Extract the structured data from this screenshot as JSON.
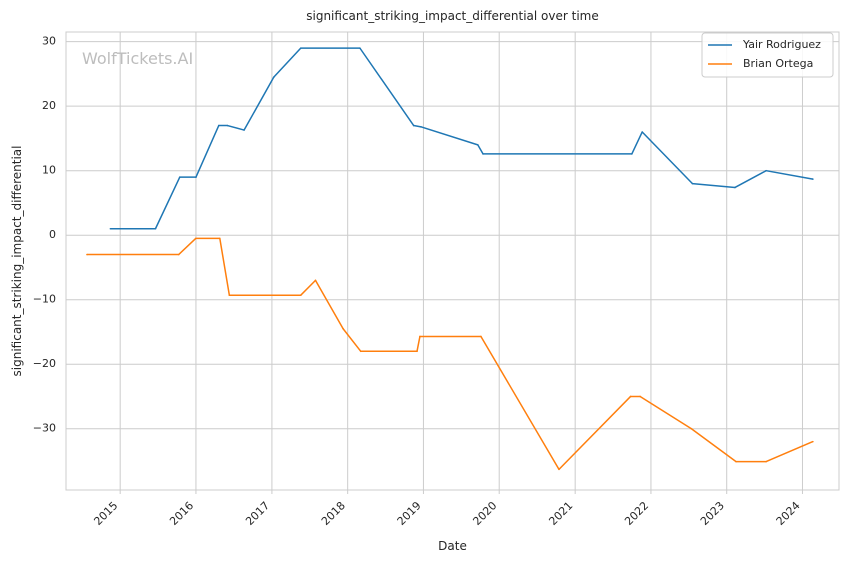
{
  "chart_data": {
    "type": "line",
    "title": "significant_striking_impact_differential over time",
    "xlabel": "Date",
    "ylabel": "significant_striking_impact_differential",
    "watermark": "WolfTickets.AI",
    "xlim": [
      "2014-04-15",
      "2024-06-25"
    ],
    "ylim": [
      -39.5,
      31.5
    ],
    "x_ticks": [
      {
        "date": "2015-01-01",
        "label": "2015"
      },
      {
        "date": "2016-01-01",
        "label": "2016"
      },
      {
        "date": "2017-01-01",
        "label": "2017"
      },
      {
        "date": "2018-01-01",
        "label": "2018"
      },
      {
        "date": "2019-01-01",
        "label": "2019"
      },
      {
        "date": "2020-01-01",
        "label": "2020"
      },
      {
        "date": "2021-01-01",
        "label": "2021"
      },
      {
        "date": "2022-01-01",
        "label": "2022"
      },
      {
        "date": "2023-01-01",
        "label": "2023"
      },
      {
        "date": "2024-01-01",
        "label": "2024"
      }
    ],
    "y_ticks": [
      {
        "value": 30,
        "label": "30"
      },
      {
        "value": 20,
        "label": "20"
      },
      {
        "value": 10,
        "label": "10"
      },
      {
        "value": 0,
        "label": "0"
      },
      {
        "value": -10,
        "label": "−10"
      },
      {
        "value": -20,
        "label": "−20"
      },
      {
        "value": -30,
        "label": "−30"
      }
    ],
    "grid": true,
    "legend_position": "top-right",
    "series": [
      {
        "name": "Yair Rodriguez",
        "color": "#1f77b4",
        "points": [
          {
            "x": "2014-11-15",
            "y": 1
          },
          {
            "x": "2015-06-20",
            "y": 1
          },
          {
            "x": "2015-10-15",
            "y": 9
          },
          {
            "x": "2016-01-01",
            "y": 9
          },
          {
            "x": "2016-04-20",
            "y": 17
          },
          {
            "x": "2016-06-01",
            "y": 17
          },
          {
            "x": "2016-08-20",
            "y": 16.3
          },
          {
            "x": "2017-01-10",
            "y": 24.5
          },
          {
            "x": "2017-05-20",
            "y": 29
          },
          {
            "x": "2018-03-01",
            "y": 29
          },
          {
            "x": "2018-11-15",
            "y": 17
          },
          {
            "x": "2018-12-20",
            "y": 16.8
          },
          {
            "x": "2019-09-20",
            "y": 14
          },
          {
            "x": "2019-10-15",
            "y": 12.6
          },
          {
            "x": "2021-10-01",
            "y": 12.6
          },
          {
            "x": "2021-11-20",
            "y": 16
          },
          {
            "x": "2022-07-20",
            "y": 8
          },
          {
            "x": "2023-02-10",
            "y": 7.4
          },
          {
            "x": "2023-07-10",
            "y": 10
          },
          {
            "x": "2024-02-20",
            "y": 8.7
          }
        ]
      },
      {
        "name": "Brian Ortega",
        "color": "#ff7f0e",
        "points": [
          {
            "x": "2014-07-25",
            "y": -3
          },
          {
            "x": "2015-10-10",
            "y": -3
          },
          {
            "x": "2015-12-31",
            "y": -0.5
          },
          {
            "x": "2016-04-25",
            "y": -0.5
          },
          {
            "x": "2016-06-10",
            "y": -9.3
          },
          {
            "x": "2017-05-20",
            "y": -9.3
          },
          {
            "x": "2017-07-30",
            "y": -7
          },
          {
            "x": "2017-12-10",
            "y": -14.5
          },
          {
            "x": "2018-03-05",
            "y": -18
          },
          {
            "x": "2018-12-01",
            "y": -18
          },
          {
            "x": "2018-12-15",
            "y": -15.7
          },
          {
            "x": "2019-10-05",
            "y": -15.7
          },
          {
            "x": "2020-10-15",
            "y": -36.3
          },
          {
            "x": "2021-09-25",
            "y": -25
          },
          {
            "x": "2021-11-10",
            "y": -25
          },
          {
            "x": "2022-07-15",
            "y": -30
          },
          {
            "x": "2023-02-15",
            "y": -35.1
          },
          {
            "x": "2023-07-10",
            "y": -35.1
          },
          {
            "x": "2024-02-20",
            "y": -32
          }
        ]
      }
    ]
  }
}
